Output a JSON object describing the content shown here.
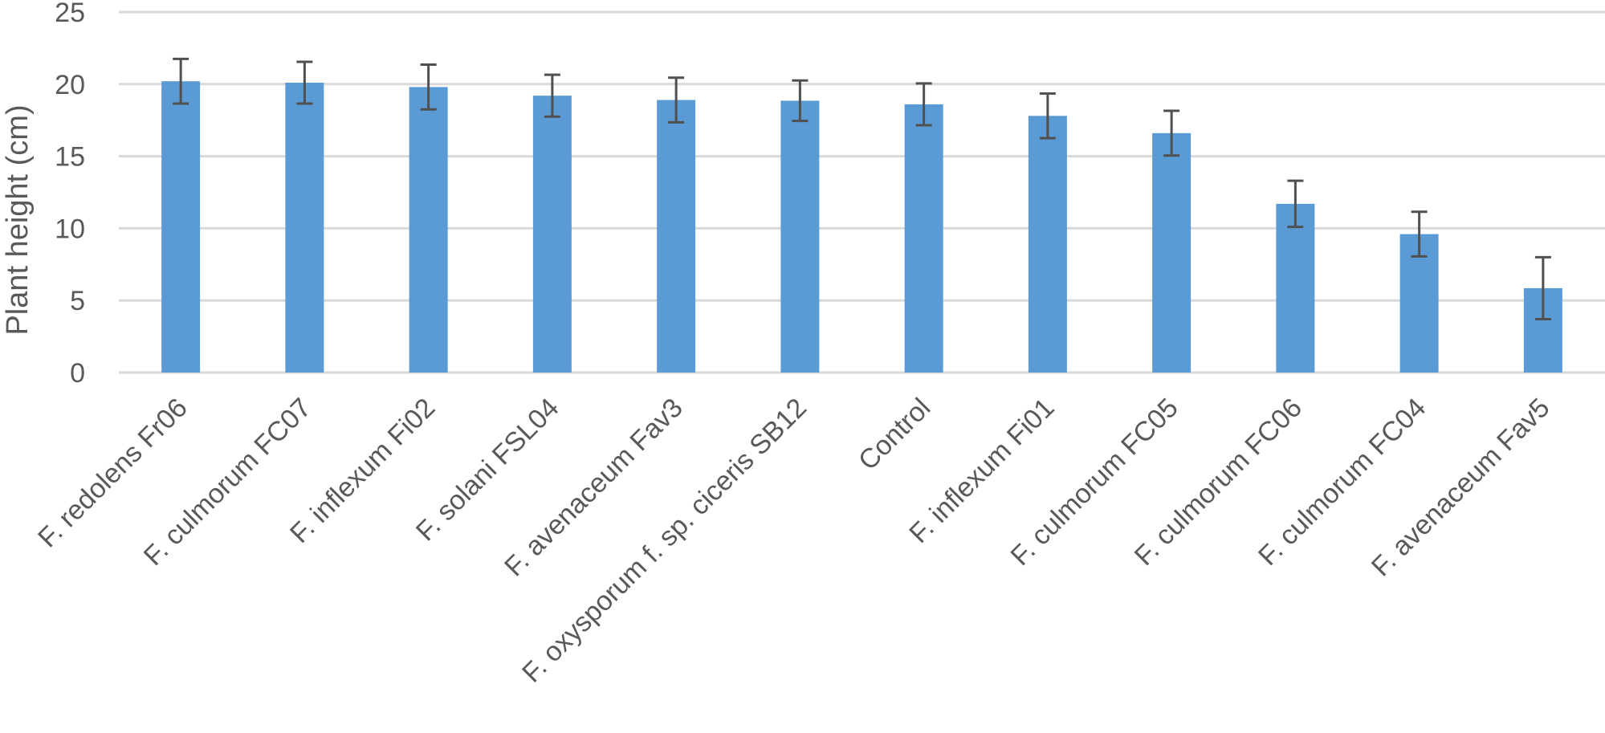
{
  "chart_data": {
    "type": "bar",
    "ylabel": "Plant height (cm)",
    "xlabel": "",
    "ylim": [
      0,
      25
    ],
    "yticks": [
      "0",
      "5",
      "10",
      "15",
      "20",
      "25"
    ],
    "grid": true,
    "bar_color": "#5b9bd5",
    "categories": [
      "F. redolens Fr06",
      "F. culmorum FC07",
      "F. inflexum Fi02",
      "F. solani FSL04",
      "F. avenaceum Fav3",
      "F. oxysporum f. sp. ciceris SB12",
      "Control",
      "F. inflexum Fi01",
      "F. culmorum FC05",
      "F. culmorum FC06",
      "F. culmorum FC04",
      "F. avenaceum Fav5"
    ],
    "values": [
      20.2,
      20.1,
      19.8,
      19.2,
      18.9,
      18.85,
      18.6,
      17.8,
      16.6,
      11.7,
      9.6,
      5.85
    ],
    "error": [
      1.55,
      1.45,
      1.55,
      1.45,
      1.55,
      1.4,
      1.45,
      1.55,
      1.55,
      1.6,
      1.55,
      2.15
    ]
  }
}
